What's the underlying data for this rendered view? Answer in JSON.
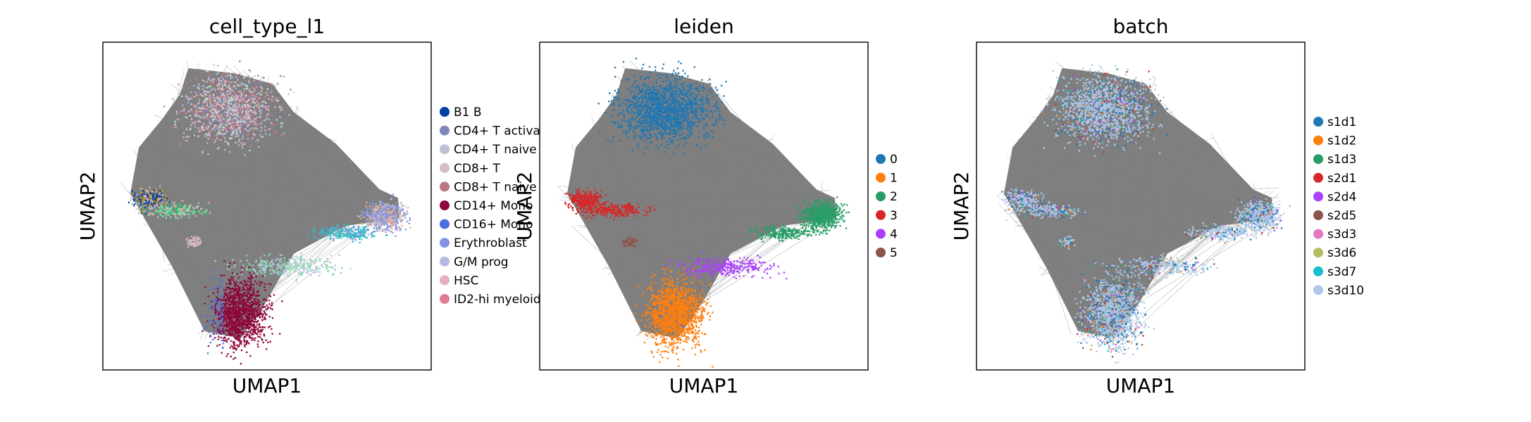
{
  "chart_data": [
    {
      "type": "scatter",
      "title": "cell_type_l1",
      "xlabel": "UMAP1",
      "ylabel": "UMAP2",
      "legend_placement": "right, outside",
      "legend": [
        {
          "label": "B1 B",
          "color": "#023fa5"
        },
        {
          "label": "CD4+ T activa",
          "color": "#7d87b9"
        },
        {
          "label": "CD4+ T naive",
          "color": "#bec1d4"
        },
        {
          "label": "CD8+ T",
          "color": "#d6bcc0"
        },
        {
          "label": "CD8+ T naive",
          "color": "#bb7784"
        },
        {
          "label": "CD14+ Mono",
          "color": "#8e063b"
        },
        {
          "label": "CD16+ Mono",
          "color": "#4a6fe3"
        },
        {
          "label": "Erythroblast",
          "color": "#8595e1"
        },
        {
          "label": "G/M prog",
          "color": "#b5bbe3"
        },
        {
          "label": "HSC",
          "color": "#e6afb9"
        },
        {
          "label": "ID2-hi myeloid",
          "color": "#e07b91"
        }
      ]
    },
    {
      "type": "scatter",
      "title": "leiden",
      "xlabel": "UMAP1",
      "ylabel": "UMAP2",
      "legend_placement": "right, outside",
      "legend": [
        {
          "label": "0",
          "color": "#1f77b4"
        },
        {
          "label": "1",
          "color": "#ff7f0e"
        },
        {
          "label": "2",
          "color": "#279e68"
        },
        {
          "label": "3",
          "color": "#d62728"
        },
        {
          "label": "4",
          "color": "#aa40fc"
        },
        {
          "label": "5",
          "color": "#8c564b"
        }
      ]
    },
    {
      "type": "scatter",
      "title": "batch",
      "xlabel": "UMAP1",
      "ylabel": "UMAP2",
      "legend_placement": "right, outside",
      "legend": [
        {
          "label": "s1d1",
          "color": "#1f77b4"
        },
        {
          "label": "s1d2",
          "color": "#ff7f0e"
        },
        {
          "label": "s1d3",
          "color": "#279e68"
        },
        {
          "label": "s2d1",
          "color": "#d62728"
        },
        {
          "label": "s2d4",
          "color": "#aa40fc"
        },
        {
          "label": "s2d5",
          "color": "#8c564b"
        },
        {
          "label": "s3d3",
          "color": "#e377c2"
        },
        {
          "label": "s3d6",
          "color": "#b5bd61"
        },
        {
          "label": "s3d7",
          "color": "#17becf"
        },
        {
          "label": "s3d10",
          "color": "#aec7e8"
        }
      ]
    }
  ],
  "colors": {
    "edges": "#7f7f7f",
    "frame": "#000000",
    "background": "#ffffff"
  }
}
